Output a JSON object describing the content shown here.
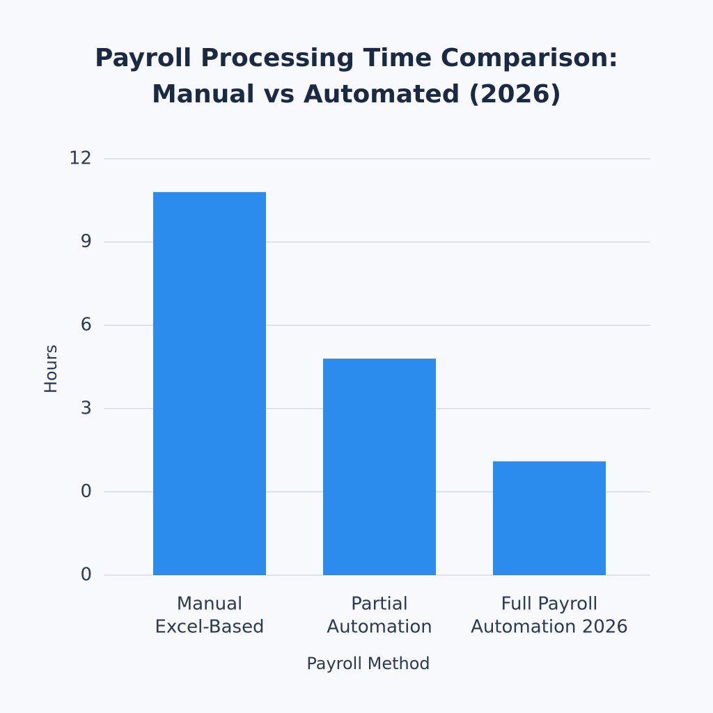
{
  "chart_data": {
    "type": "bar",
    "title_lines": [
      "Payroll Processing Time Comparison:",
      "Manual vs Automated (2026)"
    ],
    "categories": [
      [
        "Manual",
        "Excel-Based"
      ],
      [
        "Partial",
        "Automation"
      ],
      [
        "Full Payroll",
        "Automation 2026"
      ]
    ],
    "values": [
      10.8,
      4.8,
      1.1
    ],
    "y_tick_labels": [
      "12",
      "9",
      "6",
      "3",
      "0",
      "0"
    ],
    "ylim": [
      -3,
      12
    ],
    "xlabel": "Payroll Method",
    "ylabel": "Hours",
    "grid": true,
    "legend": "none",
    "bar_color": "#2b8cee",
    "grid_color": "#d5dbe3",
    "text_color": "#2b3a52",
    "title_color": "#1b2a44"
  }
}
